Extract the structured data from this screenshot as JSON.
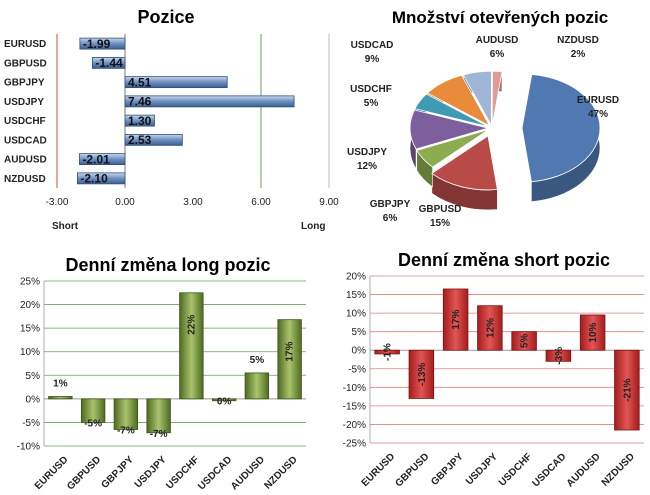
{
  "chart_data": [
    {
      "type": "bar",
      "orientation": "horizontal",
      "title": "Pozice",
      "categories": [
        "EURUSD",
        "GBPUSD",
        "GBPJPY",
        "USDJPY",
        "USDCHF",
        "USDCAD",
        "AUDUSD",
        "NZDUSD"
      ],
      "values": [
        -1.99,
        -1.44,
        4.51,
        7.46,
        1.3,
        2.53,
        -2.01,
        -2.1
      ],
      "value_labels": [
        "-1.99",
        "-1.44",
        "4.51",
        "7.46",
        "1.30",
        "2.53",
        "-2.01",
        "-2.10"
      ],
      "xlim": [
        -3.0,
        9.0
      ],
      "xticks": [
        "-3.00",
        "0.00",
        "3.00",
        "6.00",
        "9.00"
      ],
      "xtick_values": [
        -3,
        0,
        3,
        6,
        9
      ],
      "short_label": "Short",
      "long_label": "Long",
      "color": "#5b7fb0"
    },
    {
      "type": "pie",
      "title": "Množství otevřených pozic",
      "slices": [
        {
          "name": "EURUSD",
          "value": 47,
          "label": "47%",
          "color": "#4f79b0"
        },
        {
          "name": "GBPUSD",
          "value": 15,
          "label": "15%",
          "color": "#b84b48"
        },
        {
          "name": "GBPJPY",
          "value": 6,
          "label": "6%",
          "color": "#8cac4f"
        },
        {
          "name": "USDJPY",
          "value": 12,
          "label": "12%",
          "color": "#7d5f9e"
        },
        {
          "name": "USDCHF",
          "value": 5,
          "label": "5%",
          "color": "#3f9bb3"
        },
        {
          "name": "USDCAD",
          "value": 9,
          "label": "9%",
          "color": "#e88b3a"
        },
        {
          "name": "AUDUSD",
          "value": 6,
          "label": "6%",
          "color": "#9fb6d6"
        },
        {
          "name": "NZDUSD",
          "value": 2,
          "label": "2%",
          "color": "#e09a98"
        }
      ]
    },
    {
      "type": "bar",
      "title": "Denní změna long pozic",
      "categories": [
        "EURUSD",
        "GBPUSD",
        "GBPJPY",
        "USDJPY",
        "USDCHF",
        "USDCAD",
        "AUDUSD",
        "NZDUSD"
      ],
      "values": [
        0.5,
        -5,
        -6.5,
        -7.2,
        22.5,
        -0.4,
        5.5,
        16.8
      ],
      "value_labels": [
        "1%",
        "-5%",
        "-7%",
        "-7%",
        "22%",
        "0%",
        "5%",
        "17%"
      ],
      "ylim": [
        -10,
        25
      ],
      "yticks": [
        "-10%",
        "-5%",
        "0%",
        "5%",
        "10%",
        "15%",
        "20%",
        "25%"
      ],
      "ytick_values": [
        -10,
        -5,
        0,
        5,
        10,
        15,
        20,
        25
      ],
      "color": "#6e8c3a"
    },
    {
      "type": "bar",
      "title": "Denní změna short pozic",
      "categories": [
        "EURUSD",
        "GBPUSD",
        "GBPJPY",
        "USDJPY",
        "USDCHF",
        "USDCAD",
        "AUDUSD",
        "NZDUSD"
      ],
      "values": [
        -1,
        -13,
        16.5,
        12,
        5,
        -3,
        9.5,
        -21.5
      ],
      "value_labels": [
        "-1%",
        "-13%",
        "17%",
        "12%",
        "5%",
        "-3%",
        "10%",
        "-21%"
      ],
      "ylim": [
        -25,
        20
      ],
      "yticks": [
        "-25%",
        "-20%",
        "-15%",
        "-10%",
        "-5%",
        "0%",
        "5%",
        "10%",
        "15%",
        "20%"
      ],
      "ytick_values": [
        -25,
        -20,
        -15,
        -10,
        -5,
        0,
        5,
        10,
        15,
        20
      ],
      "color": "#c0392b"
    }
  ]
}
